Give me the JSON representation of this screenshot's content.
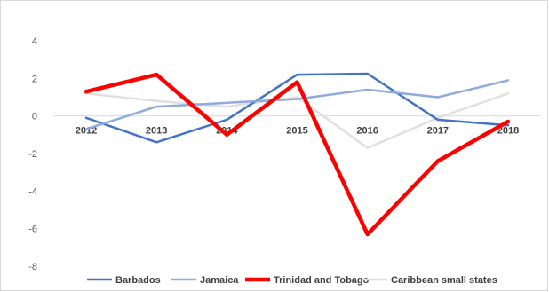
{
  "chart_data": {
    "type": "line",
    "categories": [
      "2012",
      "2013",
      "2014",
      "2015",
      "2016",
      "2017",
      "2018"
    ],
    "ylim": [
      -8,
      4
    ],
    "yticks": [
      4,
      2,
      0,
      -2,
      -4,
      -6,
      -8
    ],
    "grid": false,
    "legend_position": "bottom",
    "series": [
      {
        "name": "Barbados",
        "color": "#4472c4",
        "width": 2.5,
        "values": [
          -0.1,
          -1.4,
          -0.2,
          2.2,
          2.25,
          -0.2,
          -0.5
        ]
      },
      {
        "name": "Jamaica",
        "color": "#8faadc",
        "width": 2.5,
        "values": [
          -0.7,
          0.5,
          0.7,
          0.9,
          1.4,
          1.0,
          1.9
        ]
      },
      {
        "name": "Trinidad and Tobago",
        "color": "#ff0000",
        "width": 4.5,
        "values": [
          1.3,
          2.2,
          -1.0,
          1.8,
          -6.3,
          -2.4,
          -0.3
        ]
      },
      {
        "name": "Caribbean small states",
        "color": "#e0e0e0",
        "width": 2.5,
        "values": [
          1.2,
          0.8,
          0.5,
          1.0,
          -1.7,
          -0.1,
          1.2
        ]
      }
    ]
  }
}
